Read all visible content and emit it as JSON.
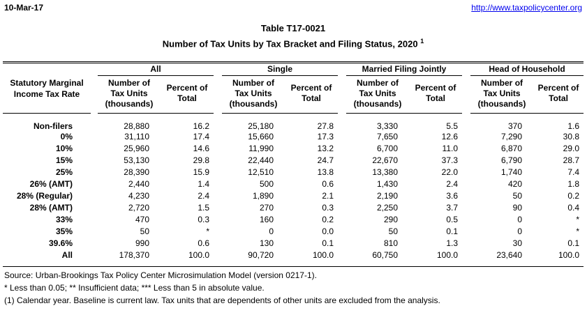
{
  "page": {
    "date": "10-Mar-17",
    "url": "http://www.taxpolicycenter.org",
    "title": "Table T17-0021",
    "subtitle": "Number of Tax Units by Tax Bracket and Filing Status, 2020",
    "subtitle_superscript": "1"
  },
  "table": {
    "stub_header": "Statutory Marginal Income Tax Rate",
    "groups": [
      "All",
      "Single",
      "Married Filing Jointly",
      "Head of Household"
    ],
    "sub_headers": {
      "number": "Number of Tax Units (thousands)",
      "percent": "Percent of Total"
    },
    "rows": [
      {
        "label": "Non-filers",
        "values": [
          "28,880",
          "16.2",
          "25,180",
          "27.8",
          "3,330",
          "5.5",
          "370",
          "1.6"
        ]
      },
      {
        "label": "0%",
        "values": [
          "31,110",
          "17.4",
          "15,660",
          "17.3",
          "7,650",
          "12.6",
          "7,290",
          "30.8"
        ]
      },
      {
        "label": "10%",
        "values": [
          "25,960",
          "14.6",
          "11,990",
          "13.2",
          "6,700",
          "11.0",
          "6,870",
          "29.0"
        ]
      },
      {
        "label": "15%",
        "values": [
          "53,130",
          "29.8",
          "22,440",
          "24.7",
          "22,670",
          "37.3",
          "6,790",
          "28.7"
        ]
      },
      {
        "label": "25%",
        "values": [
          "28,390",
          "15.9",
          "12,510",
          "13.8",
          "13,380",
          "22.0",
          "1,740",
          "7.4"
        ]
      },
      {
        "label": "26% (AMT)",
        "values": [
          "2,440",
          "1.4",
          "500",
          "0.6",
          "1,430",
          "2.4",
          "420",
          "1.8"
        ]
      },
      {
        "label": "28% (Regular)",
        "values": [
          "4,230",
          "2.4",
          "1,890",
          "2.1",
          "2,190",
          "3.6",
          "50",
          "0.2"
        ]
      },
      {
        "label": "28% (AMT)",
        "values": [
          "2,720",
          "1.5",
          "270",
          "0.3",
          "2,250",
          "3.7",
          "90",
          "0.4"
        ]
      },
      {
        "label": "33%",
        "values": [
          "470",
          "0.3",
          "160",
          "0.2",
          "290",
          "0.5",
          "0",
          "*"
        ]
      },
      {
        "label": "35%",
        "values": [
          "50",
          "*",
          "0",
          "0.0",
          "50",
          "0.1",
          "0",
          "*"
        ]
      },
      {
        "label": "39.6%",
        "values": [
          "990",
          "0.6",
          "130",
          "0.1",
          "810",
          "1.3",
          "30",
          "0.1"
        ]
      },
      {
        "label": "All",
        "values": [
          "178,370",
          "100.0",
          "90,720",
          "100.0",
          "60,750",
          "100.0",
          "23,640",
          "100.0"
        ]
      }
    ]
  },
  "footer": {
    "source": "Source: Urban-Brookings Tax Policy Center Microsimulation Model (version 0217-1).",
    "symbols": "* Less than 0.05; ** Insufficient data; *** Less than 5 in absolute value.",
    "footnote1": "(1) Calendar year. Baseline is current law. Tax units that are dependents of other units are excluded from the analysis."
  },
  "colors": {
    "link": "#0000EE",
    "text": "#000000",
    "rule": "#000000"
  }
}
